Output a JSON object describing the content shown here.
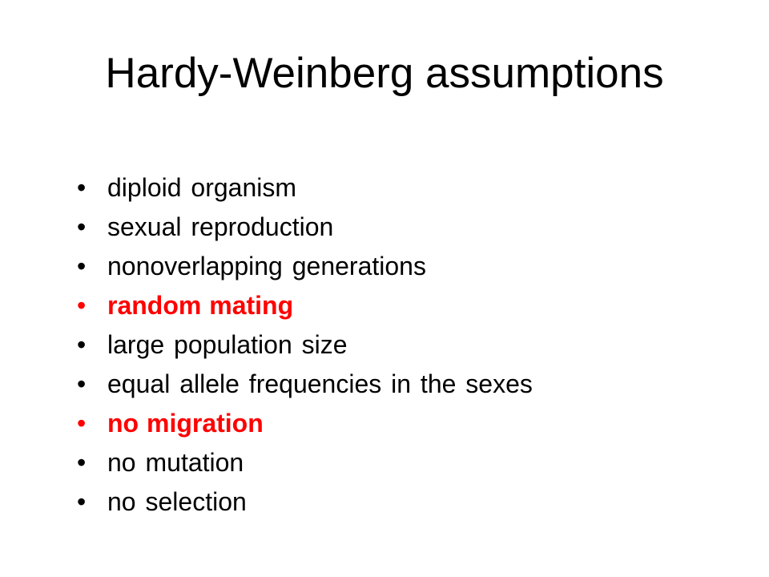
{
  "slide": {
    "title": "Hardy-Weinberg assumptions",
    "bullet_symbol": "•",
    "colors": {
      "text": "#000000",
      "emphasis": "#ff0000",
      "background": "#ffffff"
    },
    "items": [
      {
        "text": "diploid organism",
        "emphasis": false
      },
      {
        "text": "sexual reproduction",
        "emphasis": false
      },
      {
        "text": "nonoverlapping generations",
        "emphasis": false
      },
      {
        "text": "random mating",
        "emphasis": true
      },
      {
        "text": "large population size",
        "emphasis": false
      },
      {
        "text": "equal allele frequencies in the sexes",
        "emphasis": false
      },
      {
        "text": "no migration",
        "emphasis": true
      },
      {
        "text": "no mutation",
        "emphasis": false
      },
      {
        "text": "no selection",
        "emphasis": false
      }
    ]
  }
}
